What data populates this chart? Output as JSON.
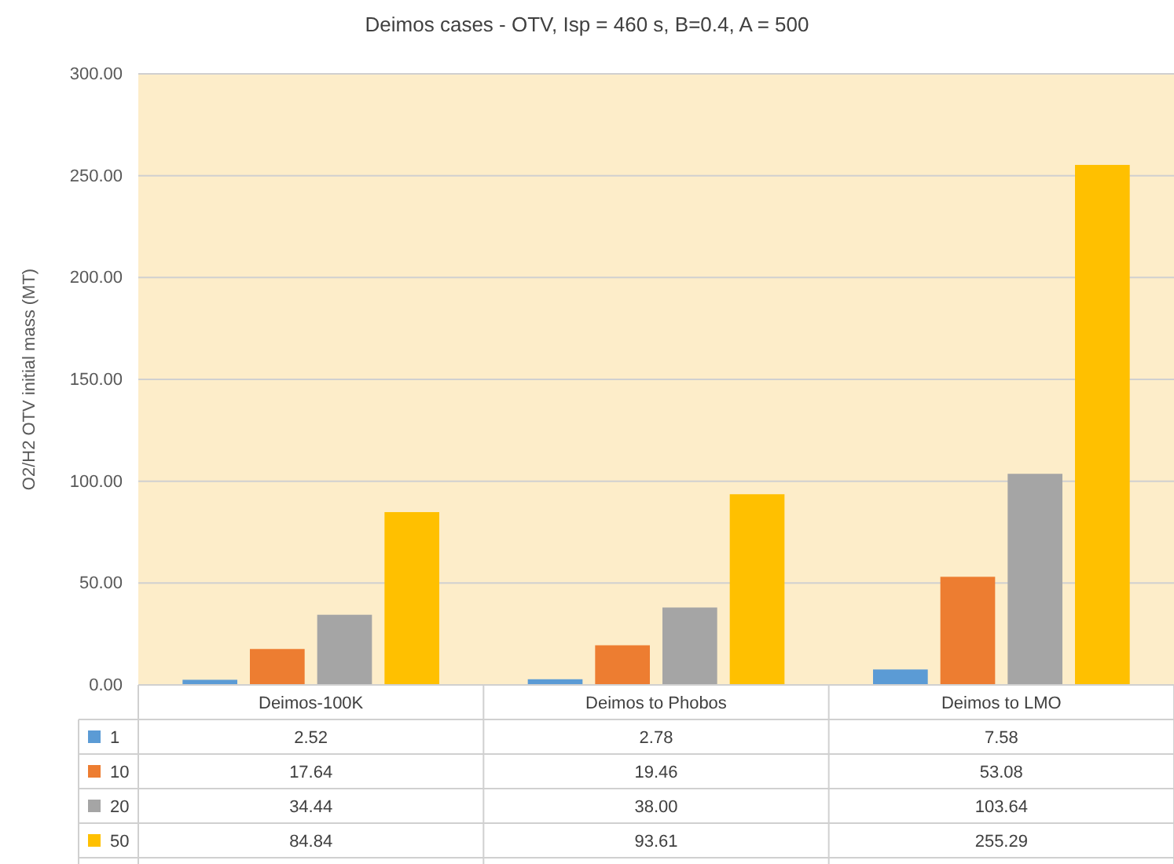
{
  "chart_data": {
    "type": "bar",
    "title": "Deimos cases - OTV, Isp = 460 s, B=0.4, A = 500",
    "ylabel": "O2/H2 OTV initial mass (MT)",
    "categories": [
      "Deimos-100K",
      "Deimos to Phobos",
      "Deimos to LMO"
    ],
    "series": [
      {
        "name": "1",
        "color": "#5b9bd5",
        "values": [
          2.52,
          2.78,
          7.58
        ],
        "value_labels": [
          "2.52",
          "2.78",
          "7.58"
        ]
      },
      {
        "name": "10",
        "color": "#ed7d31",
        "values": [
          17.64,
          19.46,
          53.08
        ],
        "value_labels": [
          "17.64",
          "19.46",
          "53.08"
        ]
      },
      {
        "name": "20",
        "color": "#a5a5a5",
        "values": [
          34.44,
          38.0,
          103.64
        ],
        "value_labels": [
          "34.44",
          "38.00",
          "103.64"
        ]
      },
      {
        "name": "50",
        "color": "#ffc000",
        "values": [
          84.84,
          93.61,
          255.29
        ],
        "value_labels": [
          "84.84",
          "93.61",
          "255.29"
        ]
      }
    ],
    "ylim": [
      0,
      300
    ],
    "yticks": [
      {
        "value": 0,
        "label": "0.00"
      },
      {
        "value": 50,
        "label": "50.00"
      },
      {
        "value": 100,
        "label": "100.00"
      },
      {
        "value": 150,
        "label": "150.00"
      },
      {
        "value": 200,
        "label": "200.00"
      },
      {
        "value": 250,
        "label": "250.00"
      },
      {
        "value": 300,
        "label": "300.00"
      }
    ],
    "grid": "y",
    "legend": "bottom"
  }
}
